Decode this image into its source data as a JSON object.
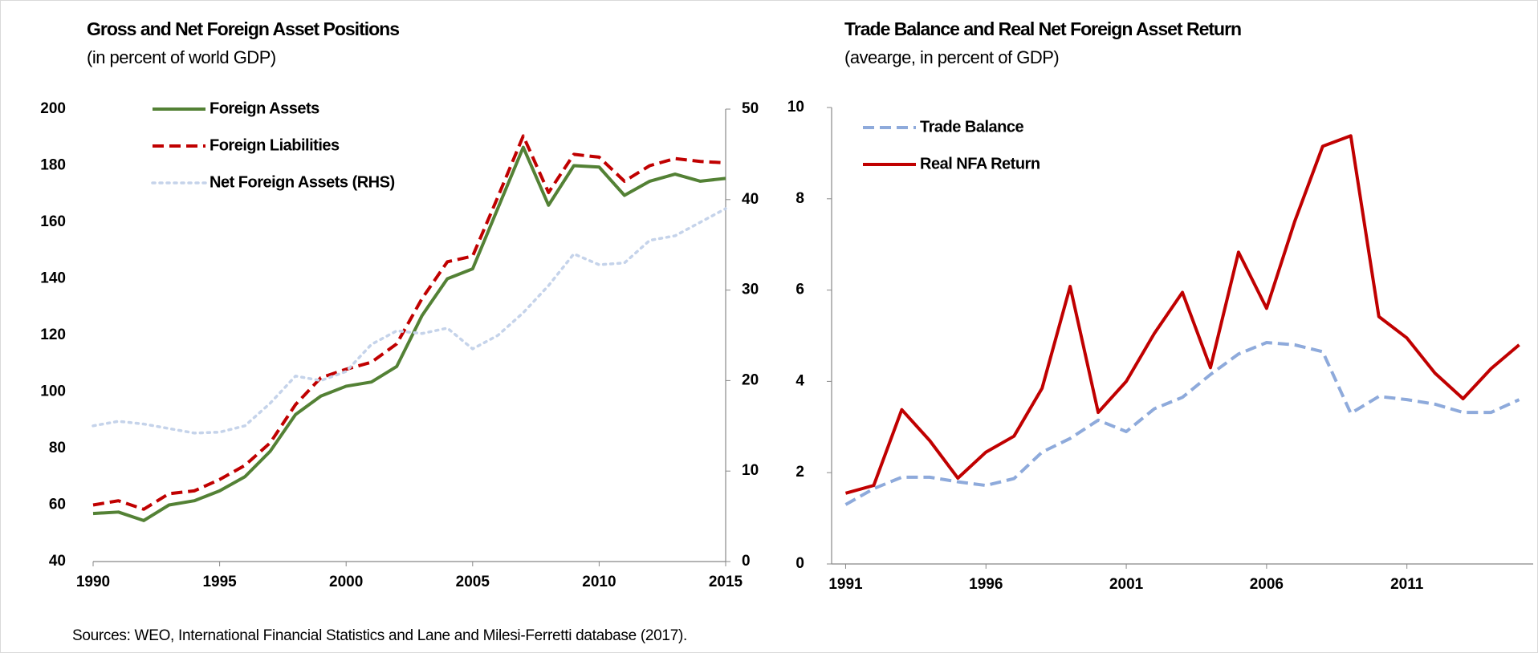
{
  "chart_data": [
    {
      "type": "line",
      "title": "Gross and Net Foreign Asset Positions",
      "subtitle": "(in percent of world GDP)",
      "x": [
        1990,
        1991,
        1992,
        1993,
        1994,
        1995,
        1996,
        1997,
        1998,
        1999,
        2000,
        2001,
        2002,
        2003,
        2004,
        2005,
        2006,
        2007,
        2008,
        2009,
        2010,
        2011,
        2012,
        2013,
        2014,
        2015
      ],
      "xlim": [
        1990,
        2015
      ],
      "xticks": [
        1990,
        1995,
        2000,
        2005,
        2010,
        2015
      ],
      "ylim": [
        40,
        200
      ],
      "yticks": [
        40,
        60,
        80,
        100,
        120,
        140,
        160,
        180,
        200
      ],
      "y2lim": [
        0,
        50
      ],
      "y2ticks": [
        0,
        10,
        20,
        30,
        40,
        50
      ],
      "legend": "top-left",
      "series": [
        {
          "name": "Foreign Assets",
          "color": "#538135",
          "style": "solid",
          "values": [
            57,
            57.5,
            54.5,
            60,
            61.5,
            65,
            70,
            79,
            92,
            98.5,
            102,
            103.5,
            109,
            127,
            140,
            143.5,
            165,
            186.5,
            166,
            180,
            179.5,
            169.5,
            174.5,
            177,
            174.5,
            175.5
          ]
        },
        {
          "name": "Foreign Liabilities",
          "color": "#c00000",
          "style": "dashed",
          "values": [
            60,
            61.5,
            58.5,
            64,
            65,
            69,
            74,
            82,
            95.5,
            105,
            108,
            110.5,
            117,
            133,
            146,
            148,
            169,
            190.5,
            170.5,
            184,
            183,
            174.5,
            180,
            182.5,
            181.5,
            181
          ]
        },
        {
          "name": "Net Foreign Assets (RHS)",
          "color": "#c5d3ea",
          "style": "dotted",
          "axis": "y2",
          "values": [
            15,
            15.5,
            15.2,
            14.7,
            14.2,
            14.3,
            15,
            17.5,
            20.5,
            20,
            21,
            24,
            25.5,
            25.2,
            25.8,
            23.5,
            25,
            27.5,
            30.5,
            34,
            32.8,
            33,
            35.5,
            36,
            37.5,
            39
          ]
        }
      ]
    },
    {
      "type": "line",
      "title": "Trade Balance and Real Net Foreign Asset Return",
      "subtitle": "(avearge, in percent of GDP)",
      "x": [
        1991,
        1992,
        1993,
        1994,
        1995,
        1996,
        1997,
        1998,
        1999,
        2000,
        2001,
        2002,
        2003,
        2004,
        2005,
        2006,
        2007,
        2008,
        2009,
        2010,
        2011,
        2012,
        2013,
        2014,
        2015
      ],
      "xlim": [
        1990.5,
        2015.5
      ],
      "xticks": [
        1991,
        1996,
        2001,
        2006,
        2011
      ],
      "ylim": [
        0,
        10
      ],
      "yticks": [
        0,
        2,
        4,
        6,
        8,
        10
      ],
      "legend": "top-left",
      "series": [
        {
          "name": "Trade Balance",
          "color": "#8eaadb",
          "style": "dashed",
          "values": [
            1.3,
            1.65,
            1.9,
            1.9,
            1.8,
            1.72,
            1.87,
            2.45,
            2.75,
            3.15,
            2.9,
            3.4,
            3.65,
            4.15,
            4.6,
            4.85,
            4.8,
            4.65,
            3.3,
            3.67,
            3.6,
            3.5,
            3.32,
            3.32,
            3.6
          ]
        },
        {
          "name": "Real NFA Return",
          "color": "#c00000",
          "style": "solid",
          "values": [
            1.55,
            1.72,
            3.38,
            2.7,
            1.88,
            2.45,
            2.8,
            3.85,
            6.08,
            3.32,
            4.0,
            5.05,
            5.95,
            4.3,
            6.83,
            5.6,
            7.5,
            9.15,
            9.38,
            5.42,
            4.95,
            4.18,
            3.62,
            4.28,
            4.8
          ]
        }
      ]
    }
  ],
  "source": "Sources: WEO, International Financial Statistics and Lane and Milesi-Ferretti database (2017)."
}
